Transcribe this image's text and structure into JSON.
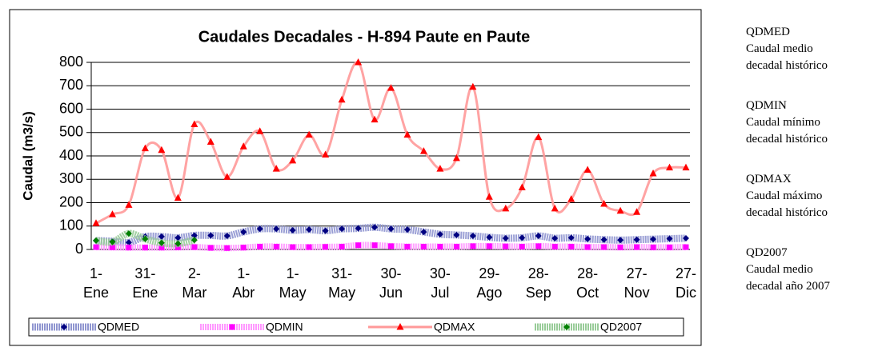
{
  "chart_data": {
    "type": "line",
    "title": "Caudales Decadales - H-894 Paute en Paute",
    "ylabel": "Caudal (m3/s)",
    "categories": [
      "1-Ene",
      null,
      null,
      "31-Ene",
      null,
      null,
      "2-Mar",
      null,
      null,
      "1-Abr",
      null,
      null,
      "1-May",
      null,
      null,
      "31-May",
      null,
      null,
      "30-Jun",
      null,
      null,
      "30-Jul",
      null,
      null,
      "29-Ago",
      null,
      null,
      "28-Sep",
      null,
      null,
      "28-Oct",
      null,
      null,
      "27-Nov",
      null,
      null,
      "27-Dic"
    ],
    "ylim": [
      0,
      800
    ],
    "yticks": [
      0,
      100,
      200,
      300,
      400,
      500,
      600,
      700,
      800
    ],
    "grid": true,
    "series": [
      {
        "name": "QDMED",
        "color": "#000080",
        "values": [
          38,
          35,
          30,
          55,
          55,
          50,
          60,
          60,
          58,
          75,
          88,
          88,
          82,
          85,
          80,
          88,
          90,
          95,
          88,
          85,
          75,
          65,
          62,
          58,
          52,
          48,
          50,
          58,
          48,
          50,
          45,
          42,
          40,
          42,
          44,
          46,
          48
        ]
      },
      {
        "name": "QDMIN",
        "color": "#ff00ff",
        "values": [
          10,
          9,
          8,
          8,
          8,
          9,
          10,
          7,
          6,
          8,
          12,
          12,
          10,
          10,
          11,
          12,
          18,
          18,
          14,
          12,
          12,
          12,
          12,
          14,
          14,
          13,
          12,
          14,
          12,
          12,
          10,
          10,
          9,
          10,
          9,
          9,
          10
        ]
      },
      {
        "name": "QDMAX",
        "color": "#ff0000",
        "values": [
          112,
          150,
          190,
          432,
          425,
          220,
          535,
          460,
          310,
          440,
          505,
          345,
          380,
          490,
          405,
          640,
          800,
          555,
          690,
          490,
          420,
          345,
          390,
          695,
          225,
          175,
          265,
          480,
          175,
          215,
          340,
          195,
          165,
          160,
          325,
          350,
          350
        ]
      },
      {
        "name": "QD2007",
        "color": "#008000",
        "values": [
          38,
          32,
          68,
          45,
          28,
          25,
          40,
          null,
          null,
          null,
          null,
          null,
          null,
          null,
          null,
          null,
          null,
          null,
          null,
          null,
          null,
          null,
          null,
          null,
          null,
          null,
          null,
          null,
          null,
          null,
          null,
          null,
          null,
          null,
          null,
          null,
          null
        ]
      }
    ]
  },
  "notes": [
    {
      "code": "QDMED",
      "lines": [
        "Caudal medio",
        "decadal histórico"
      ]
    },
    {
      "code": "QDMIN",
      "lines": [
        "Caudal mínimo",
        "decadal histórico"
      ]
    },
    {
      "code": "QDMAX",
      "lines": [
        "Caudal máximo",
        "decadal histórico"
      ]
    },
    {
      "code": "QD2007",
      "lines": [
        "Caudal medio",
        "decadal año 2007"
      ]
    }
  ]
}
